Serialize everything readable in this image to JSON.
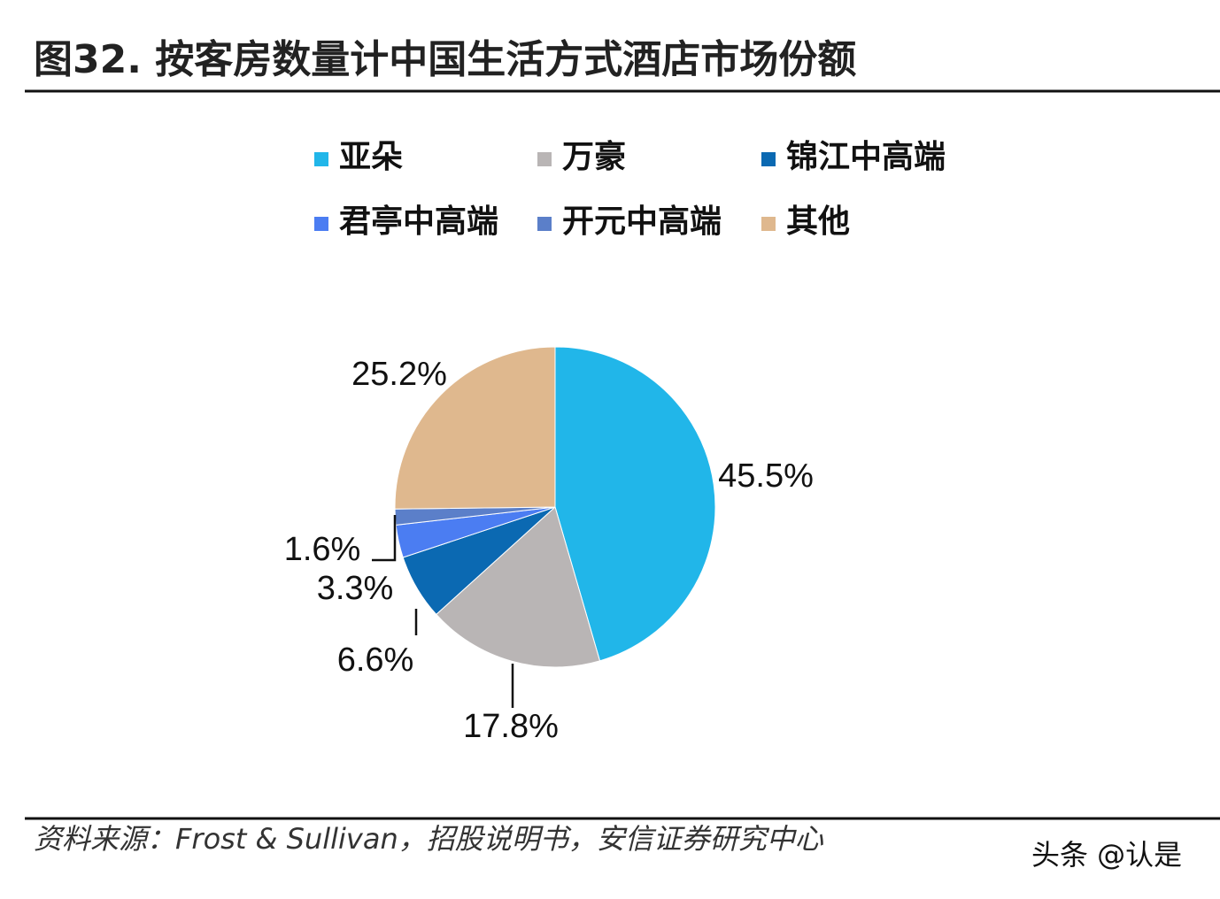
{
  "chart_data": {
    "type": "pie",
    "title": "图32. 按客房数量计中国生活方式酒店市场份额",
    "categories": [
      "亚朵",
      "万豪",
      "锦江中高端",
      "君亭中高端",
      "开元中高端",
      "其他"
    ],
    "values": [
      45.5,
      17.8,
      6.6,
      3.3,
      1.6,
      25.2
    ],
    "value_labels": [
      "45.5%",
      "17.8%",
      "6.6%",
      "3.3%",
      "1.6%",
      "25.2%"
    ],
    "colors": [
      "#21b6e9",
      "#b9b5b5",
      "#0b69b2",
      "#4b7df2",
      "#5b7fc9",
      "#dfb88e"
    ],
    "source": "资料来源：Frost & Sullivan，招股说明书，安信证券研究中心",
    "watermark": "头条 @认是"
  }
}
